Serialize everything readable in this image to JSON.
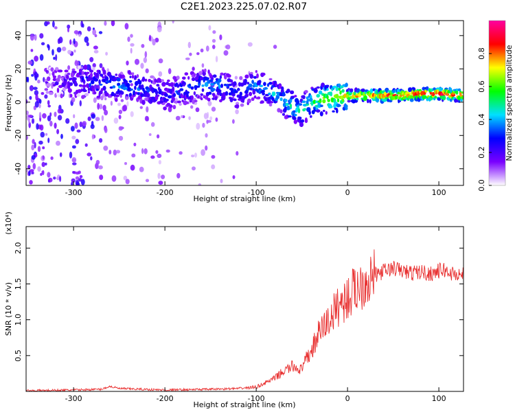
{
  "title": "C2E1.2023.225.07.02.R07",
  "colors": {
    "snr_line": "#e83030",
    "axis": "#000000"
  },
  "chart_data": [
    {
      "type": "heatmap",
      "title": "C2E1.2023.225.07.02.R07",
      "xlabel": "Height of straight line (km)",
      "ylabel": "Frequency (Hz)",
      "xlim": [
        -352,
        127
      ],
      "ylim": [
        -50,
        49
      ],
      "x_ticks": [
        -300,
        -200,
        -100,
        0,
        100
      ],
      "y_ticks": [
        -40,
        -20,
        0,
        20,
        40
      ],
      "colorbar": {
        "label": "Normalized spectral amplitude",
        "range": [
          0.0,
          1.0
        ],
        "ticks": [
          0.0,
          0.2,
          0.4,
          0.6,
          0.8
        ],
        "colors": [
          "#ffffff",
          "#7a00ff",
          "#0000ff",
          "#00e0ff",
          "#00ff00",
          "#ffff00",
          "#ff0000",
          "#ff00a0"
        ]
      },
      "ridge": {
        "x": [
          -320,
          -280,
          -250,
          -220,
          -200,
          -180,
          -160,
          -140,
          -120,
          -100,
          -80,
          -60,
          -50,
          -40,
          -30,
          -20,
          -10,
          0,
          20,
          40,
          60,
          80,
          100,
          127
        ],
        "freq": [
          12,
          12,
          10,
          8,
          4,
          8,
          10,
          10,
          6,
          10,
          5,
          -3,
          -5,
          0,
          2,
          2,
          4,
          4,
          4,
          4,
          4,
          5,
          5,
          4
        ],
        "amplitude": [
          0.15,
          0.3,
          0.35,
          0.3,
          0.25,
          0.3,
          0.35,
          0.35,
          0.3,
          0.35,
          0.4,
          0.45,
          0.5,
          0.5,
          0.6,
          0.65,
          0.7,
          0.75,
          0.8,
          0.85,
          0.85,
          0.9,
          0.95,
          0.85
        ]
      }
    },
    {
      "type": "line",
      "xlabel": "Height of straight line (km)",
      "ylabel": "SNR (10 * v/v)",
      "y_multiplier": "(x10⁴)",
      "xlim": [
        -352,
        127
      ],
      "ylim": [
        0,
        2.3
      ],
      "x_ticks": [
        -300,
        -200,
        -100,
        0,
        100
      ],
      "y_ticks": [
        0.5,
        1.0,
        1.5,
        2.0
      ],
      "y_tick_labels": [
        "0.5",
        "1.0",
        "1.5",
        "2.0"
      ],
      "series": [
        {
          "name": "SNR",
          "x": [
            -352,
            -300,
            -270,
            -260,
            -250,
            -200,
            -150,
            -120,
            -100,
            -90,
            -80,
            -70,
            -60,
            -50,
            -45,
            -40,
            -30,
            -20,
            -10,
            0,
            10,
            20,
            30,
            40,
            50,
            60,
            70,
            80,
            90,
            100,
            105,
            110,
            120,
            127
          ],
          "y": [
            0.01,
            0.02,
            0.03,
            0.07,
            0.04,
            0.02,
            0.03,
            0.04,
            0.06,
            0.12,
            0.18,
            0.28,
            0.35,
            0.3,
            0.45,
            0.55,
            0.85,
            1.0,
            1.2,
            1.3,
            1.45,
            1.55,
            1.62,
            1.68,
            1.72,
            1.68,
            1.65,
            1.67,
            1.64,
            1.68,
            1.7,
            1.66,
            1.63,
            1.63
          ]
        }
      ]
    }
  ]
}
